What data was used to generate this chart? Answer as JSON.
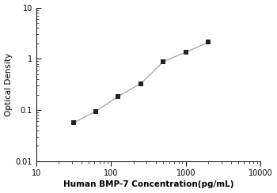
{
  "x": [
    31.25,
    62.5,
    125,
    250,
    500,
    1000,
    2000
  ],
  "y": [
    0.056,
    0.095,
    0.185,
    0.33,
    0.88,
    1.35,
    2.1
  ],
  "xlim": [
    10,
    10000
  ],
  "ylim": [
    0.01,
    10
  ],
  "xlabel": "Human BMP-7 Concentration(pg/mL)",
  "ylabel": "Optical Density",
  "line_color": "#aaaaaa",
  "marker_color": "#222222",
  "marker": "s",
  "marker_size": 4,
  "line_width": 1.0,
  "xlabel_fontsize": 7.5,
  "ylabel_fontsize": 7.5,
  "tick_fontsize": 7,
  "background_color": "#ffffff"
}
